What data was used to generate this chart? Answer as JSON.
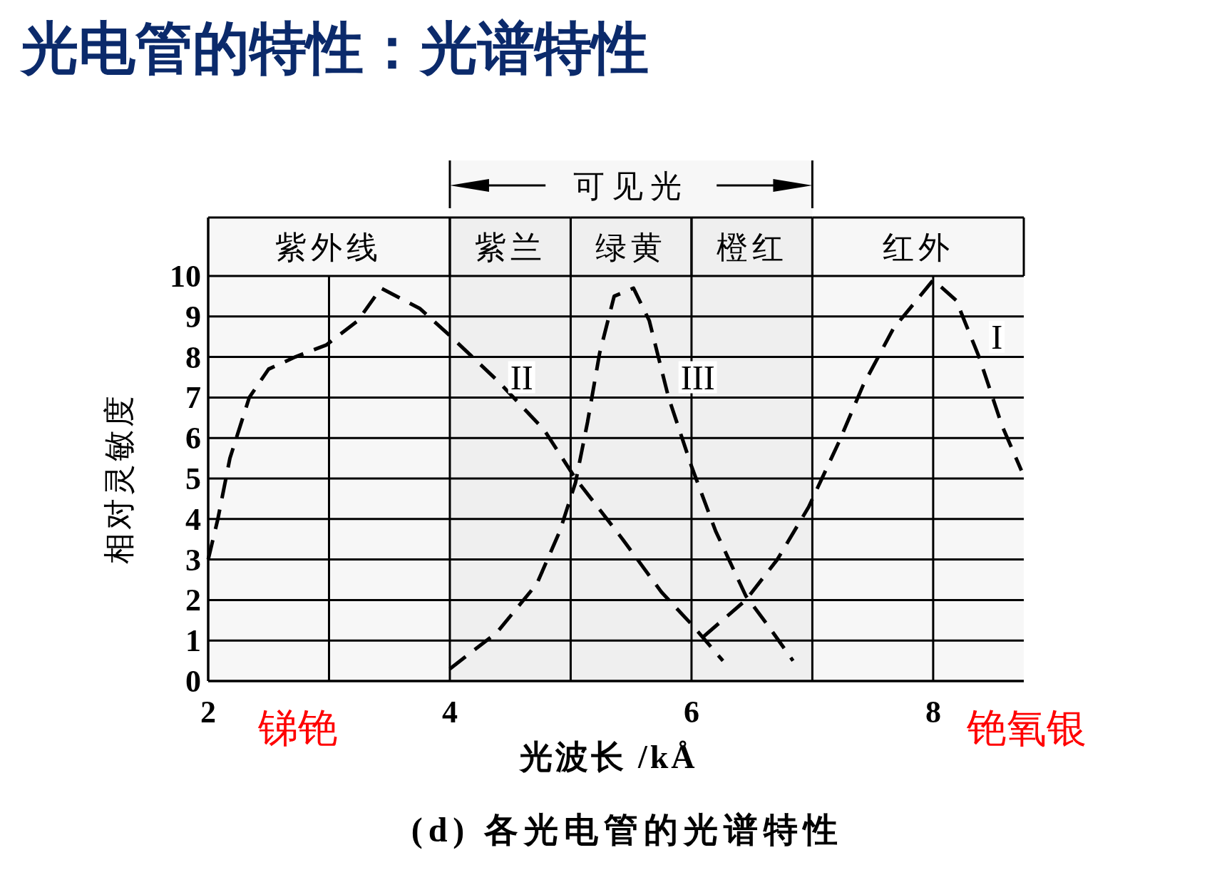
{
  "chart_data": {
    "type": "line",
    "title": "光电管的特性：光谱特性",
    "xlabel": "光波长 /kÅ",
    "ylabel": "相对灵敏度",
    "annotations": [
      "锑铯",
      "铯氧银",
      "(d) 各光电管的光谱特性"
    ],
    "xlim": [
      2,
      8.75
    ],
    "ylim": [
      0,
      10
    ],
    "xticks": [
      2,
      4,
      6,
      8
    ],
    "yticks": [
      0,
      1,
      2,
      3,
      4,
      5,
      6,
      7,
      8,
      9,
      10
    ],
    "grid": true,
    "line_style": "dashed",
    "bands": [
      {
        "axis": "x",
        "from": 2,
        "to": 4,
        "label": "紫外线"
      },
      {
        "axis": "x",
        "from": 4,
        "to": 5,
        "label": "紫兰"
      },
      {
        "axis": "x",
        "from": 5,
        "to": 6,
        "label": "绿黄"
      },
      {
        "axis": "x",
        "from": 6,
        "to": 7,
        "label": "橙红"
      },
      {
        "axis": "x",
        "from": 7,
        "to": 8.75,
        "label": "红外"
      },
      {
        "axis": "x",
        "from": 4,
        "to": 7,
        "label": "可见光"
      }
    ],
    "series": [
      {
        "name": "I",
        "color": "#000000",
        "x": [
          6.1,
          6.45,
          6.71,
          6.97,
          7.22,
          7.42,
          7.67,
          8.0,
          8.19,
          8.38,
          8.57,
          8.73
        ],
        "values": [
          1.1,
          2.0,
          3.0,
          4.3,
          5.9,
          7.3,
          8.7,
          9.9,
          9.4,
          8.0,
          6.3,
          5.2
        ]
      },
      {
        "name": "II",
        "color": "#000000",
        "x": [
          2.0,
          2.08,
          2.18,
          2.34,
          2.5,
          2.72,
          2.98,
          3.24,
          3.43,
          3.75,
          4.01,
          4.4,
          4.78,
          5.04,
          5.43,
          5.75,
          6.0,
          6.26
        ],
        "values": [
          3.0,
          4.0,
          5.5,
          7.0,
          7.7,
          8.0,
          8.3,
          8.9,
          9.7,
          9.2,
          8.5,
          7.4,
          6.2,
          5.0,
          3.5,
          2.2,
          1.4,
          0.5
        ]
      },
      {
        "name": "III",
        "color": "#000000",
        "x": [
          4.0,
          4.39,
          4.72,
          4.91,
          5.04,
          5.14,
          5.24,
          5.36,
          5.52,
          5.65,
          5.81,
          6.0,
          6.2,
          6.45,
          6.65,
          6.84
        ],
        "values": [
          0.3,
          1.2,
          2.4,
          3.7,
          4.9,
          6.4,
          8.1,
          9.5,
          9.7,
          8.9,
          7.0,
          5.3,
          3.7,
          2.1,
          1.3,
          0.5
        ]
      }
    ]
  }
}
